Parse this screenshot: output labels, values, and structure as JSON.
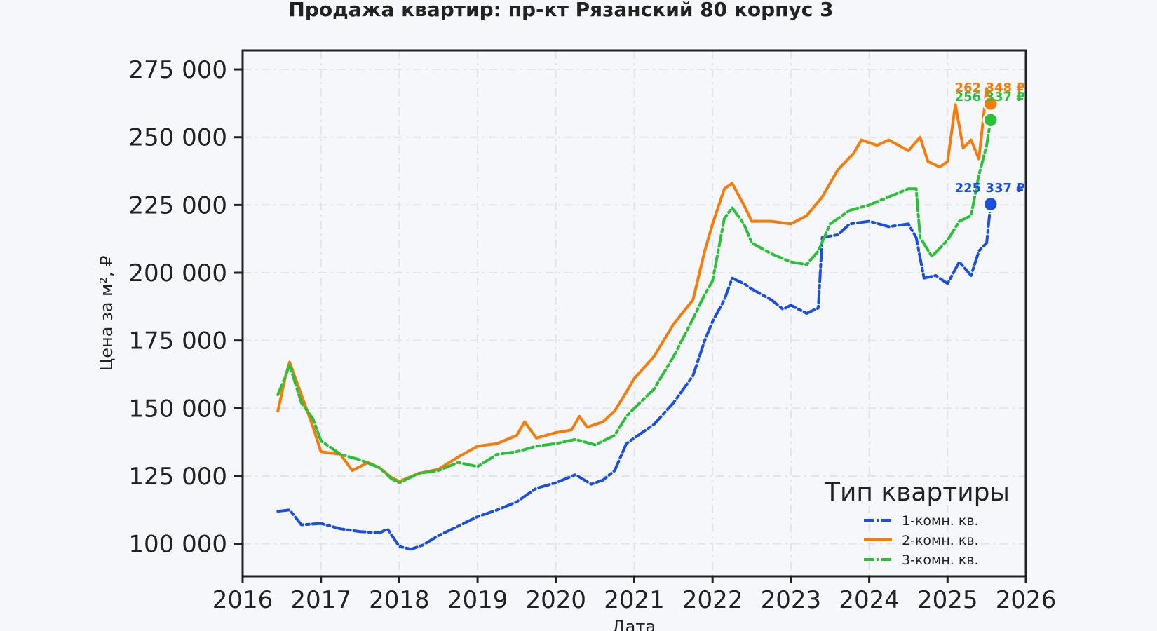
{
  "chart_data": {
    "type": "line",
    "title": "Продажа квартир: пр-кт Рязанский 80 корпус 3",
    "xlabel": "Дата",
    "ylabel": "Цена за м², ₽",
    "xlim": [
      2016,
      2026
    ],
    "ylim": [
      88000,
      282000
    ],
    "x_ticks": [
      "2016",
      "2017",
      "2018",
      "2019",
      "2020",
      "2021",
      "2022",
      "2023",
      "2024",
      "2025",
      "2026"
    ],
    "y_ticks": [
      "100 000",
      "125 000",
      "150 000",
      "175 000",
      "200 000",
      "225 000",
      "250 000",
      "275 000"
    ],
    "grid": true,
    "legend": {
      "title": "Тип квартиры",
      "placement": "bottom-right"
    },
    "series": [
      {
        "name": "1-комн. кв.",
        "color": "#1a4fe0",
        "dash": "dashdot",
        "end_label": "225 337 ₽",
        "end_value": 225337,
        "points": [
          [
            2016.45,
            112000
          ],
          [
            2016.6,
            112500
          ],
          [
            2016.75,
            107000
          ],
          [
            2017.0,
            107500
          ],
          [
            2017.25,
            105500
          ],
          [
            2017.5,
            104500
          ],
          [
            2017.75,
            104000
          ],
          [
            2017.85,
            105500
          ],
          [
            2018.0,
            99000
          ],
          [
            2018.15,
            98000
          ],
          [
            2018.3,
            99500
          ],
          [
            2018.5,
            103000
          ],
          [
            2018.75,
            106500
          ],
          [
            2019.0,
            110000
          ],
          [
            2019.25,
            112500
          ],
          [
            2019.5,
            115500
          ],
          [
            2019.75,
            120500
          ],
          [
            2020.0,
            122500
          ],
          [
            2020.25,
            125500
          ],
          [
            2020.45,
            122000
          ],
          [
            2020.6,
            123500
          ],
          [
            2020.75,
            127000
          ],
          [
            2020.9,
            137000
          ],
          [
            2021.0,
            139000
          ],
          [
            2021.25,
            144000
          ],
          [
            2021.5,
            152000
          ],
          [
            2021.75,
            162000
          ],
          [
            2021.9,
            175000
          ],
          [
            2022.0,
            182000
          ],
          [
            2022.15,
            190000
          ],
          [
            2022.25,
            198000
          ],
          [
            2022.4,
            196000
          ],
          [
            2022.5,
            194000
          ],
          [
            2022.75,
            190000
          ],
          [
            2022.9,
            186500
          ],
          [
            2023.0,
            188000
          ],
          [
            2023.2,
            185000
          ],
          [
            2023.35,
            187000
          ],
          [
            2023.4,
            213000
          ],
          [
            2023.6,
            214000
          ],
          [
            2023.75,
            218000
          ],
          [
            2024.0,
            219000
          ],
          [
            2024.25,
            217000
          ],
          [
            2024.5,
            218000
          ],
          [
            2024.6,
            213000
          ],
          [
            2024.7,
            198000
          ],
          [
            2024.85,
            199000
          ],
          [
            2025.0,
            196000
          ],
          [
            2025.15,
            204000
          ],
          [
            2025.3,
            199000
          ],
          [
            2025.4,
            208000
          ],
          [
            2025.5,
            211000
          ],
          [
            2025.55,
            225337
          ]
        ]
      },
      {
        "name": "2-комн. кв.",
        "color": "#f57c0a",
        "dash": "solid",
        "end_label": "262 348 ₽",
        "end_value": 262348,
        "points": [
          [
            2016.45,
            149000
          ],
          [
            2016.55,
            162000
          ],
          [
            2016.6,
            167000
          ],
          [
            2016.75,
            155000
          ],
          [
            2016.9,
            143000
          ],
          [
            2017.0,
            134000
          ],
          [
            2017.25,
            133000
          ],
          [
            2017.4,
            127000
          ],
          [
            2017.6,
            130000
          ],
          [
            2017.75,
            128000
          ],
          [
            2017.9,
            124500
          ],
          [
            2018.0,
            123000
          ],
          [
            2018.25,
            126000
          ],
          [
            2018.5,
            127500
          ],
          [
            2018.75,
            132000
          ],
          [
            2019.0,
            136000
          ],
          [
            2019.25,
            137000
          ],
          [
            2019.5,
            140000
          ],
          [
            2019.6,
            145000
          ],
          [
            2019.75,
            139000
          ],
          [
            2020.0,
            141000
          ],
          [
            2020.2,
            142000
          ],
          [
            2020.3,
            147000
          ],
          [
            2020.4,
            143000
          ],
          [
            2020.6,
            145000
          ],
          [
            2020.75,
            149000
          ],
          [
            2020.9,
            156000
          ],
          [
            2021.0,
            161000
          ],
          [
            2021.25,
            169000
          ],
          [
            2021.5,
            181000
          ],
          [
            2021.75,
            190000
          ],
          [
            2021.9,
            208000
          ],
          [
            2022.0,
            218000
          ],
          [
            2022.15,
            231000
          ],
          [
            2022.25,
            233000
          ],
          [
            2022.4,
            225000
          ],
          [
            2022.5,
            219000
          ],
          [
            2022.75,
            219000
          ],
          [
            2023.0,
            218000
          ],
          [
            2023.2,
            221000
          ],
          [
            2023.4,
            228000
          ],
          [
            2023.6,
            238000
          ],
          [
            2023.8,
            244000
          ],
          [
            2023.9,
            249000
          ],
          [
            2024.1,
            247000
          ],
          [
            2024.25,
            249000
          ],
          [
            2024.5,
            245000
          ],
          [
            2024.65,
            250000
          ],
          [
            2024.75,
            241000
          ],
          [
            2024.9,
            239000
          ],
          [
            2025.0,
            241000
          ],
          [
            2025.1,
            262000
          ],
          [
            2025.2,
            246000
          ],
          [
            2025.3,
            249000
          ],
          [
            2025.4,
            242000
          ],
          [
            2025.5,
            268000
          ],
          [
            2025.55,
            262348
          ]
        ]
      },
      {
        "name": "3-комн. кв.",
        "color": "#2bbf3a",
        "dash": "dashdot",
        "end_label": "256 337 ₽",
        "end_value": 256337,
        "points": [
          [
            2016.45,
            155000
          ],
          [
            2016.55,
            162000
          ],
          [
            2016.6,
            166000
          ],
          [
            2016.75,
            152000
          ],
          [
            2016.9,
            146000
          ],
          [
            2017.0,
            138000
          ],
          [
            2017.25,
            133000
          ],
          [
            2017.5,
            131000
          ],
          [
            2017.75,
            128000
          ],
          [
            2017.9,
            124000
          ],
          [
            2018.0,
            122500
          ],
          [
            2018.25,
            126000
          ],
          [
            2018.5,
            127000
          ],
          [
            2018.75,
            130000
          ],
          [
            2019.0,
            128500
          ],
          [
            2019.25,
            133000
          ],
          [
            2019.5,
            134000
          ],
          [
            2019.75,
            136000
          ],
          [
            2020.0,
            137000
          ],
          [
            2020.25,
            138500
          ],
          [
            2020.5,
            136500
          ],
          [
            2020.75,
            140000
          ],
          [
            2020.9,
            147000
          ],
          [
            2021.0,
            150000
          ],
          [
            2021.25,
            157000
          ],
          [
            2021.5,
            169000
          ],
          [
            2021.75,
            183000
          ],
          [
            2021.9,
            192000
          ],
          [
            2022.0,
            197000
          ],
          [
            2022.15,
            220000
          ],
          [
            2022.25,
            224000
          ],
          [
            2022.4,
            218000
          ],
          [
            2022.5,
            211000
          ],
          [
            2022.75,
            207000
          ],
          [
            2023.0,
            204000
          ],
          [
            2023.2,
            203000
          ],
          [
            2023.35,
            208000
          ],
          [
            2023.5,
            218000
          ],
          [
            2023.75,
            223000
          ],
          [
            2024.0,
            225000
          ],
          [
            2024.25,
            228000
          ],
          [
            2024.5,
            231000
          ],
          [
            2024.6,
            231000
          ],
          [
            2024.65,
            213000
          ],
          [
            2024.8,
            206000
          ],
          [
            2025.0,
            212000
          ],
          [
            2025.15,
            219000
          ],
          [
            2025.3,
            221000
          ],
          [
            2025.4,
            236000
          ],
          [
            2025.5,
            247000
          ],
          [
            2025.55,
            256337
          ]
        ]
      }
    ]
  }
}
